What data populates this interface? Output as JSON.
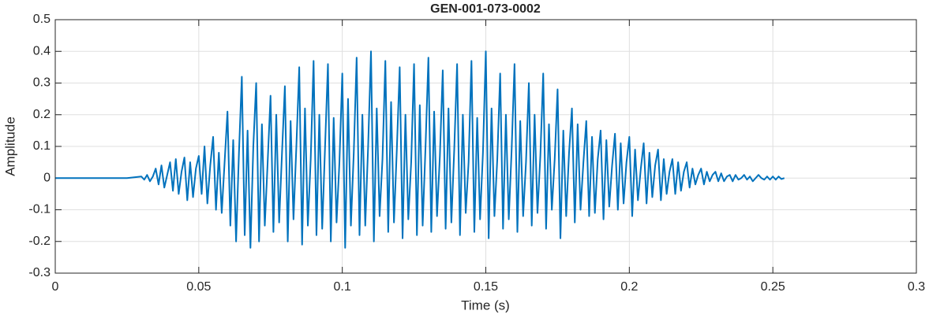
{
  "chart_data": {
    "type": "line",
    "title": "GEN-001-073-0002",
    "xlabel": "Time (s)",
    "ylabel": "Amplitude",
    "xlim": [
      0,
      0.3
    ],
    "ylim": [
      -0.3,
      0.5
    ],
    "xticks": [
      0,
      0.05,
      0.1,
      0.15,
      0.2,
      0.25,
      0.3
    ],
    "yticks": [
      -0.3,
      -0.2,
      -0.1,
      0,
      0.1,
      0.2,
      0.3,
      0.4,
      0.5
    ],
    "grid": true,
    "x": [
      0,
      0.005,
      0.01,
      0.015,
      0.02,
      0.025,
      0.03,
      0.031,
      0.032,
      0.033,
      0.034,
      0.035,
      0.036,
      0.037,
      0.038,
      0.039,
      0.04,
      0.041,
      0.042,
      0.043,
      0.044,
      0.045,
      0.046,
      0.047,
      0.048,
      0.049,
      0.05,
      0.051,
      0.052,
      0.053,
      0.054,
      0.055,
      0.056,
      0.057,
      0.058,
      0.059,
      0.06,
      0.061,
      0.062,
      0.063,
      0.064,
      0.065,
      0.066,
      0.067,
      0.068,
      0.069,
      0.07,
      0.071,
      0.072,
      0.073,
      0.074,
      0.075,
      0.076,
      0.077,
      0.078,
      0.079,
      0.08,
      0.081,
      0.082,
      0.083,
      0.084,
      0.085,
      0.086,
      0.087,
      0.088,
      0.089,
      0.09,
      0.091,
      0.092,
      0.093,
      0.094,
      0.095,
      0.096,
      0.097,
      0.098,
      0.099,
      0.1,
      0.101,
      0.102,
      0.103,
      0.104,
      0.105,
      0.106,
      0.107,
      0.108,
      0.109,
      0.11,
      0.111,
      0.112,
      0.113,
      0.114,
      0.115,
      0.116,
      0.117,
      0.118,
      0.119,
      0.12,
      0.121,
      0.122,
      0.123,
      0.124,
      0.125,
      0.126,
      0.127,
      0.128,
      0.129,
      0.13,
      0.131,
      0.132,
      0.133,
      0.134,
      0.135,
      0.136,
      0.137,
      0.138,
      0.139,
      0.14,
      0.141,
      0.142,
      0.143,
      0.144,
      0.145,
      0.146,
      0.147,
      0.148,
      0.149,
      0.15,
      0.151,
      0.152,
      0.153,
      0.154,
      0.155,
      0.156,
      0.157,
      0.158,
      0.159,
      0.16,
      0.161,
      0.162,
      0.163,
      0.164,
      0.165,
      0.166,
      0.167,
      0.168,
      0.169,
      0.17,
      0.171,
      0.172,
      0.173,
      0.174,
      0.175,
      0.176,
      0.177,
      0.178,
      0.179,
      0.18,
      0.181,
      0.182,
      0.183,
      0.184,
      0.185,
      0.186,
      0.187,
      0.188,
      0.189,
      0.19,
      0.191,
      0.192,
      0.193,
      0.194,
      0.195,
      0.196,
      0.197,
      0.198,
      0.199,
      0.2,
      0.201,
      0.202,
      0.203,
      0.204,
      0.205,
      0.206,
      0.207,
      0.208,
      0.209,
      0.21,
      0.211,
      0.212,
      0.213,
      0.214,
      0.215,
      0.216,
      0.217,
      0.218,
      0.219,
      0.22,
      0.221,
      0.222,
      0.223,
      0.224,
      0.225,
      0.226,
      0.227,
      0.228,
      0.229,
      0.23,
      0.231,
      0.232,
      0.233,
      0.234,
      0.235,
      0.236,
      0.237,
      0.238,
      0.239,
      0.24,
      0.241,
      0.242,
      0.243,
      0.244,
      0.245,
      0.246,
      0.247,
      0.248,
      0.249,
      0.25,
      0.251,
      0.252,
      0.253,
      0.254
    ],
    "series": [
      {
        "color": "#0072BD",
        "values": [
          0,
          0,
          0,
          0,
          0,
          0,
          0.005,
          -0.005,
          0.01,
          -0.01,
          0.005,
          0.03,
          -0.02,
          0.04,
          -0.03,
          0.01,
          0.05,
          -0.04,
          0.06,
          -0.05,
          0.02,
          0.065,
          -0.07,
          0.05,
          -0.06,
          0.03,
          0.07,
          -0.05,
          0.1,
          -0.08,
          0.04,
          0.13,
          -0.1,
          0.08,
          -0.11,
          0.05,
          0.21,
          -0.15,
          0.12,
          -0.2,
          0.08,
          0.32,
          -0.18,
          0.15,
          -0.22,
          0.1,
          0.3,
          -0.2,
          0.17,
          -0.15,
          0.05,
          0.26,
          -0.17,
          0.2,
          -0.14,
          0.08,
          0.29,
          -0.2,
          0.18,
          -0.13,
          0.1,
          0.35,
          -0.21,
          0.22,
          -0.15,
          0.06,
          0.37,
          -0.18,
          0.2,
          -0.16,
          0.1,
          0.36,
          -0.2,
          0.19,
          -0.14,
          0.05,
          0.33,
          -0.22,
          0.25,
          -0.15,
          0.08,
          0.38,
          -0.18,
          0.2,
          -0.15,
          0.1,
          0.4,
          -0.2,
          0.22,
          -0.12,
          0.06,
          0.37,
          -0.17,
          0.24,
          -0.14,
          0.09,
          0.35,
          -0.19,
          0.2,
          -0.13,
          0.05,
          0.36,
          -0.18,
          0.23,
          -0.15,
          0.1,
          0.38,
          -0.17,
          0.21,
          -0.12,
          0.07,
          0.34,
          -0.16,
          0.22,
          -0.14,
          0.09,
          0.36,
          -0.18,
          0.2,
          -0.11,
          0.05,
          0.37,
          -0.17,
          0.19,
          -0.13,
          0.08,
          0.4,
          -0.19,
          0.22,
          -0.12,
          0.06,
          0.33,
          -0.16,
          0.2,
          -0.13,
          0.09,
          0.36,
          -0.17,
          0.18,
          -0.12,
          0.05,
          0.3,
          -0.15,
          0.2,
          -0.11,
          0.07,
          0.33,
          -0.16,
          0.17,
          -0.1,
          0.06,
          0.28,
          -0.19,
          0.15,
          -0.12,
          0.08,
          0.22,
          -0.14,
          0.17,
          -0.1,
          0.05,
          0.18,
          -0.12,
          0.13,
          -0.11,
          0.06,
          0.15,
          -0.13,
          0.12,
          -0.09,
          0.04,
          0.14,
          -0.1,
          0.11,
          -0.08,
          0.05,
          0.13,
          -0.12,
          0.09,
          -0.07,
          0.03,
          0.11,
          -0.08,
          0.08,
          -0.06,
          0.04,
          0.09,
          -0.07,
          0.06,
          -0.05,
          0.02,
          0.06,
          -0.05,
          0.05,
          -0.04,
          0.02,
          0.05,
          -0.03,
          0.03,
          -0.02,
          0.01,
          0.03,
          -0.02,
          0.02,
          -0.01,
          0.01,
          0.02,
          -0.01,
          0.015,
          -0.01,
          0.005,
          0.01,
          -0.01,
          0.01,
          -0.005,
          0,
          0.01,
          -0.005,
          0.005,
          -0.01,
          0,
          0.01,
          0,
          -0.005,
          0.005,
          -0.005,
          0.005,
          -0.005,
          0.005,
          -0.003,
          0
        ]
      }
    ]
  }
}
